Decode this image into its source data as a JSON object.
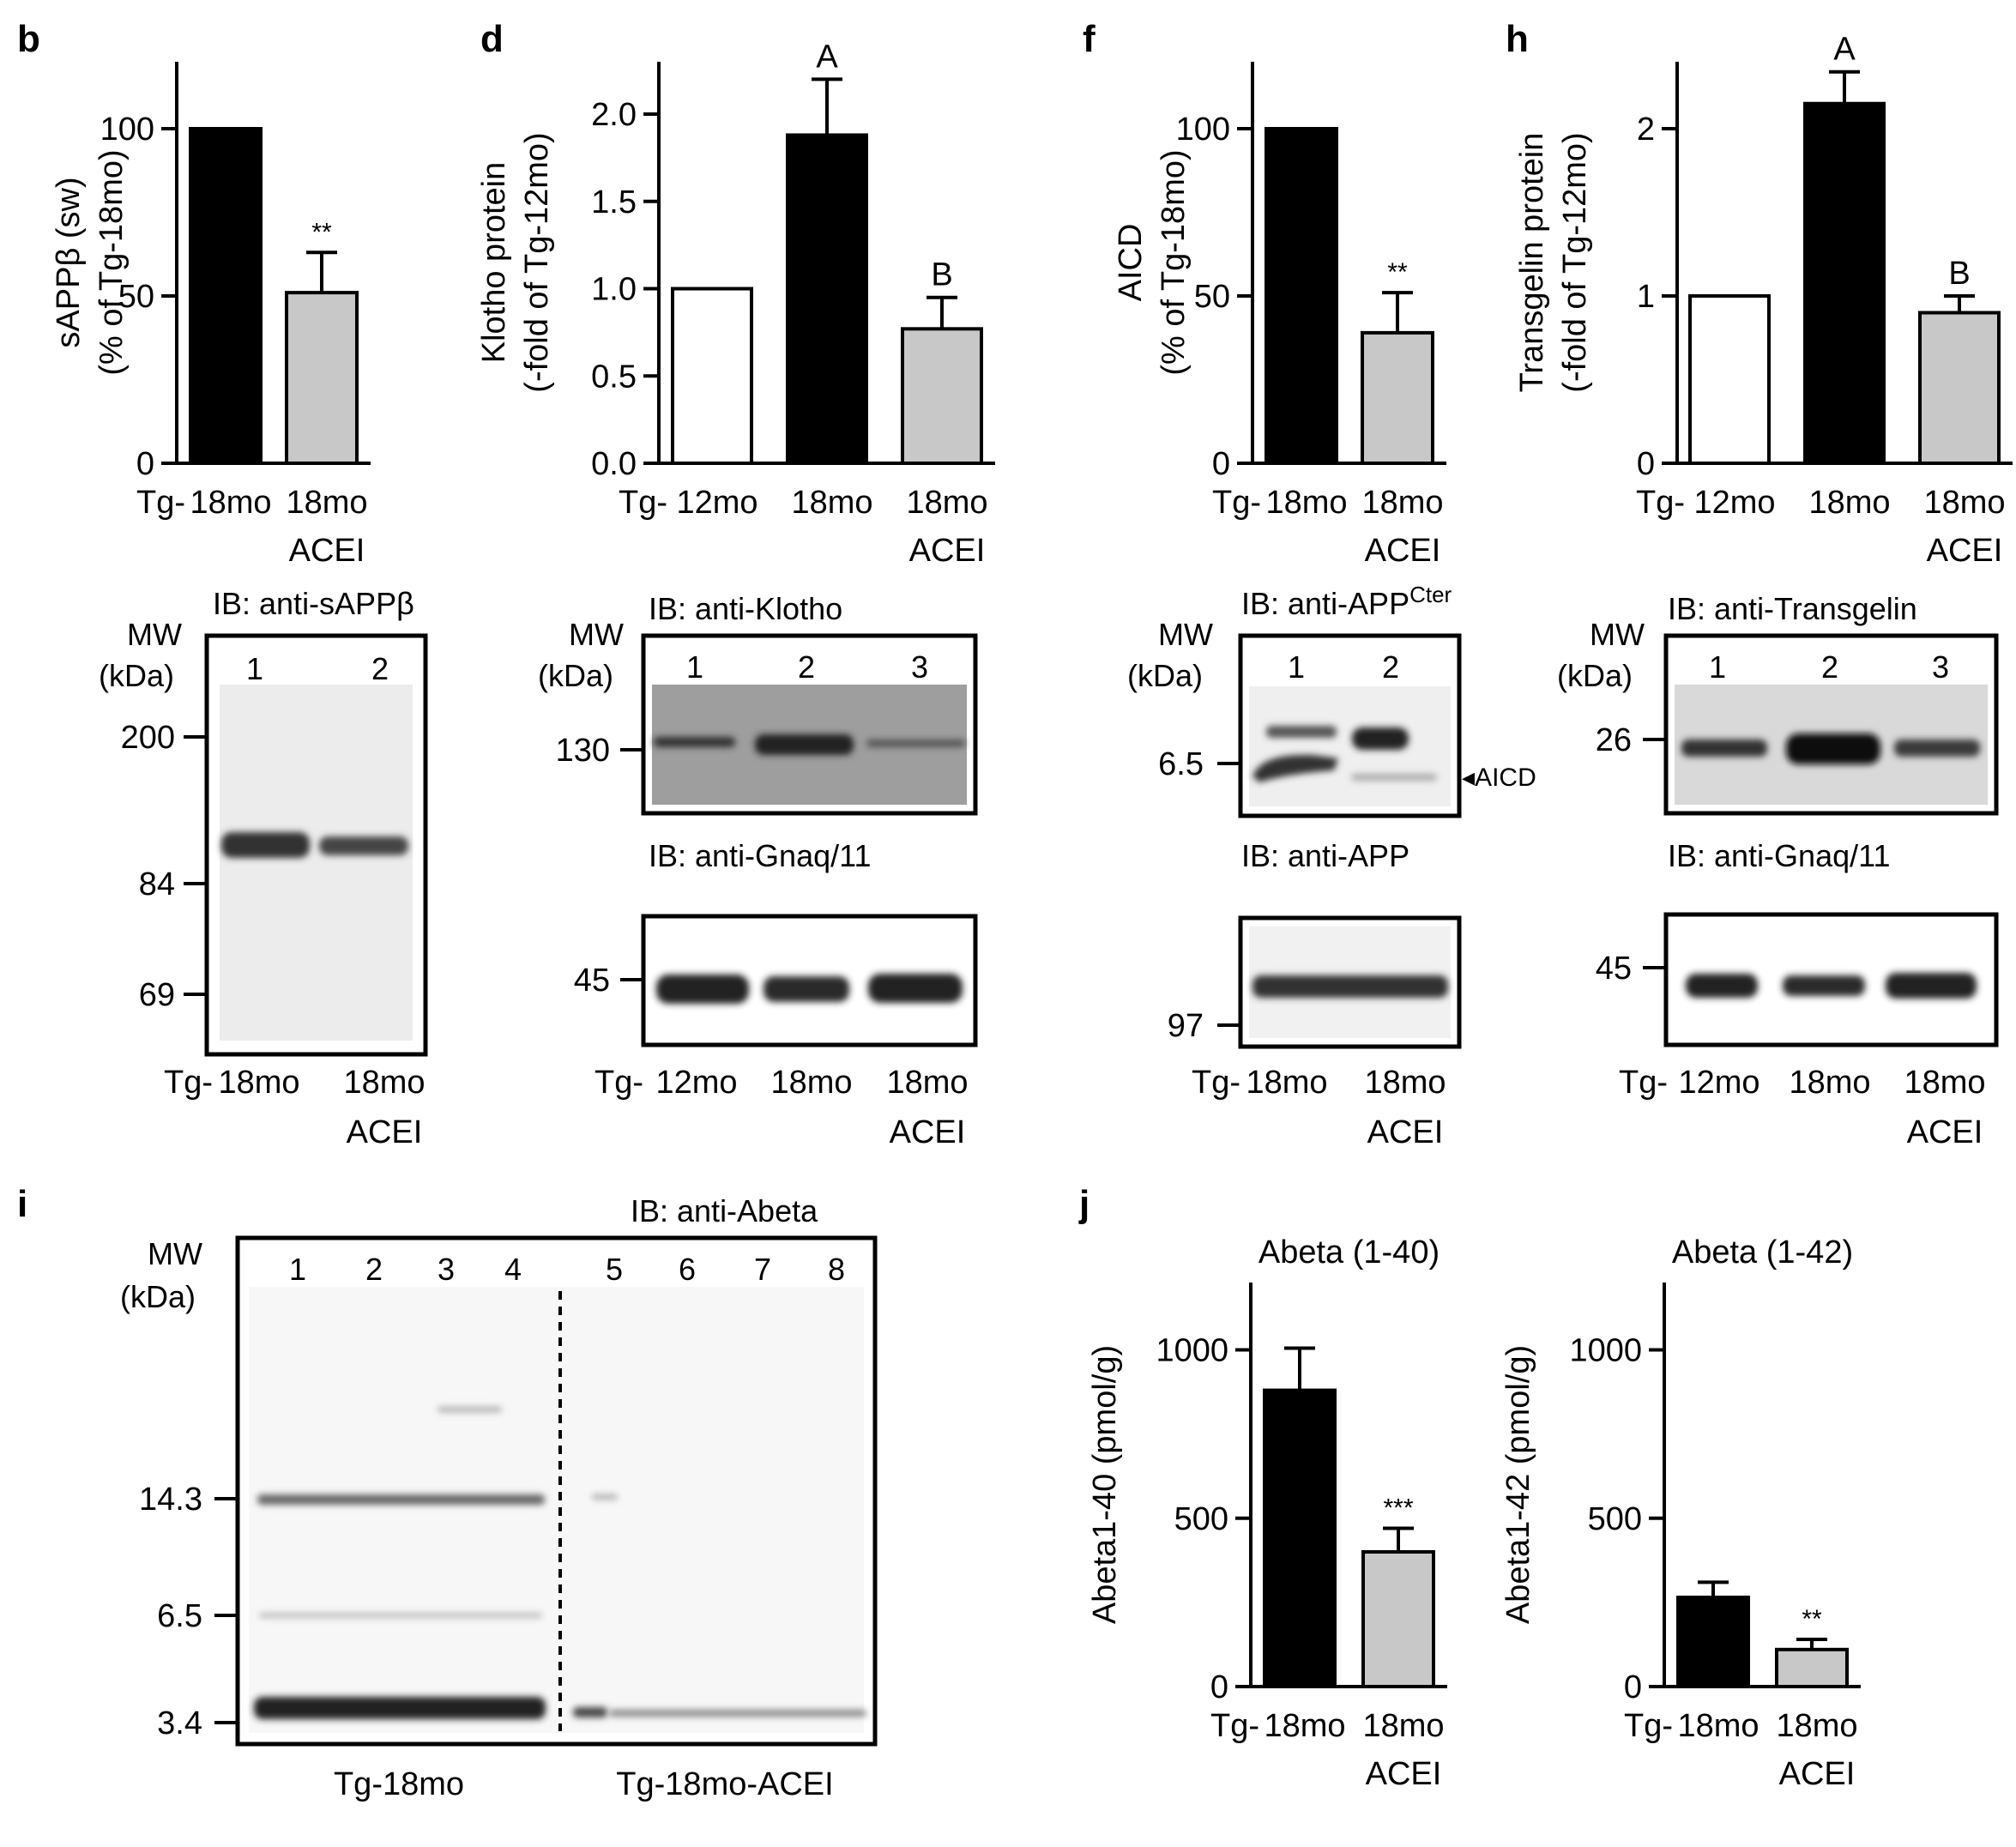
{
  "chart_data": [
    {
      "panel": "b",
      "type": "bar",
      "ylabel": [
        "sAPPβ (sw)",
        "(% of Tg-18mo)"
      ],
      "ylim": [
        0,
        120
      ],
      "yticks": [
        0,
        50,
        100
      ],
      "yticklabels": [
        "0",
        "50",
        "100"
      ],
      "prefix": "Tg-",
      "categories": [
        [
          "18mo"
        ],
        [
          "18mo",
          "ACEI"
        ]
      ],
      "values": [
        100,
        51
      ],
      "errors": [
        0,
        12
      ],
      "fills": [
        "#000000",
        "#c8c8c8"
      ],
      "annotations": [
        "",
        "**"
      ]
    },
    {
      "panel": "d",
      "type": "bar",
      "ylabel": [
        "Klotho protein",
        "(-fold of Tg-12mo)"
      ],
      "ylim": [
        0,
        2.3
      ],
      "yticks": [
        0,
        0.5,
        1,
        1.5,
        2
      ],
      "yticklabels": [
        "0.0",
        "0.5",
        "1.0",
        "1.5",
        "2.0"
      ],
      "prefix": "Tg-",
      "categories": [
        [
          "12mo"
        ],
        [
          "18mo"
        ],
        [
          "18mo",
          "ACEI"
        ]
      ],
      "values": [
        1.0,
        1.88,
        0.77
      ],
      "errors": [
        0,
        0.32,
        0.18
      ],
      "fills": [
        "#ffffff",
        "#000000",
        "#c8c8c8"
      ],
      "annotations": [
        "",
        "A",
        "B"
      ]
    },
    {
      "panel": "f",
      "type": "bar",
      "ylabel": [
        "AICD",
        "(% of Tg-18mo)"
      ],
      "ylim": [
        0,
        120
      ],
      "yticks": [
        0,
        50,
        100
      ],
      "yticklabels": [
        "0",
        "50",
        "100"
      ],
      "prefix": "Tg-",
      "categories": [
        [
          "18mo"
        ],
        [
          "18mo",
          "ACEI"
        ]
      ],
      "values": [
        100,
        39
      ],
      "errors": [
        0,
        12
      ],
      "fills": [
        "#000000",
        "#c8c8c8"
      ],
      "annotations": [
        "",
        "**"
      ]
    },
    {
      "panel": "h",
      "type": "bar",
      "ylabel": [
        "Transgelin protein",
        "(-fold of Tg-12mo)"
      ],
      "ylim": [
        0,
        2.4
      ],
      "yticks": [
        0,
        1,
        2
      ],
      "yticklabels": [
        "0",
        "1",
        "2"
      ],
      "prefix": "Tg-",
      "categories": [
        [
          "12mo"
        ],
        [
          "18mo"
        ],
        [
          "18mo",
          "ACEI"
        ]
      ],
      "values": [
        1.0,
        2.15,
        0.9
      ],
      "errors": [
        0,
        0.19,
        0.1
      ],
      "fills": [
        "#ffffff",
        "#000000",
        "#c8c8c8"
      ],
      "annotations": [
        "",
        "A",
        "B"
      ]
    },
    {
      "panel": "j",
      "type": "bar",
      "title": "Abeta (1-40)",
      "ylabel": [
        "Abeta1-40 (pmol/g)"
      ],
      "ylim": [
        0,
        1200
      ],
      "yticks": [
        0,
        500,
        1000
      ],
      "yticklabels": [
        "0",
        "500",
        "1000"
      ],
      "prefix": "Tg-",
      "categories": [
        [
          "18mo"
        ],
        [
          "18mo",
          "ACEI"
        ]
      ],
      "values": [
        880,
        400
      ],
      "errors": [
        125,
        70
      ],
      "fills": [
        "#000000",
        "#c8c8c8"
      ],
      "annotations": [
        "",
        "***"
      ]
    },
    {
      "panel": "",
      "type": "bar",
      "title": "Abeta (1-42)",
      "ylabel": [
        "Abeta1-42 (pmol/g)"
      ],
      "ylim": [
        0,
        1200
      ],
      "yticks": [
        0,
        500,
        1000
      ],
      "yticklabels": [
        "0",
        "500",
        "1000"
      ],
      "prefix": "Tg-",
      "categories": [
        [
          "18mo"
        ],
        [
          "18mo",
          "ACEI"
        ]
      ],
      "values": [
        265,
        110
      ],
      "errors": [
        45,
        30
      ],
      "fills": [
        "#000000",
        "#c8c8c8"
      ],
      "annotations": [
        "",
        "**"
      ]
    }
  ],
  "blots": [
    {
      "panel": "b",
      "title": "IB: anti-sAPPβ",
      "mw": [
        "MW",
        "(kDa)"
      ],
      "lanes": [
        "1",
        "2"
      ],
      "markers": [
        "200",
        "84",
        "69"
      ],
      "prefix": "Tg-",
      "groups": [
        [
          "18mo"
        ],
        [
          "18mo",
          "ACEI"
        ]
      ]
    },
    {
      "panel": "d",
      "title": "IB: anti-Klotho",
      "mw": [
        "MW",
        "(kDa)"
      ],
      "lanes": [
        "1",
        "2",
        "3"
      ],
      "markers": [
        "130"
      ],
      "lower_title": "IB: anti-Gnaq/11",
      "lower_markers": [
        "45"
      ],
      "prefix": "Tg-",
      "groups": [
        [
          "12mo"
        ],
        [
          "18mo"
        ],
        [
          "18mo",
          "ACEI"
        ]
      ]
    },
    {
      "panel": "f",
      "title": "IB: anti-APP",
      "title_sup": "Cter",
      "mw": [
        "MW",
        "(kDa)"
      ],
      "lanes": [
        "1",
        "2"
      ],
      "markers": [
        "6.5"
      ],
      "band_label": "◂AICD",
      "lower_title": "IB: anti-APP",
      "lower_markers": [
        "97"
      ],
      "prefix": "Tg-",
      "groups": [
        [
          "18mo"
        ],
        [
          "18mo",
          "ACEI"
        ]
      ]
    },
    {
      "panel": "h",
      "title": "IB: anti-Transgelin",
      "mw": [
        "MW",
        "(kDa)"
      ],
      "lanes": [
        "1",
        "2",
        "3"
      ],
      "markers": [
        "26"
      ],
      "lower_title": "IB: anti-Gnaq/11",
      "lower_markers": [
        "45"
      ],
      "prefix": "Tg-",
      "groups": [
        [
          "12mo"
        ],
        [
          "18mo"
        ],
        [
          "18mo",
          "ACEI"
        ]
      ]
    },
    {
      "panel": "i",
      "title": "IB: anti-Abeta",
      "mw": [
        "MW",
        "(kDa)"
      ],
      "lanes": [
        "1",
        "2",
        "3",
        "4",
        "5",
        "6",
        "7",
        "8"
      ],
      "markers": [
        "14.3",
        "6.5",
        "3.4"
      ],
      "groups": [
        "Tg-18mo",
        "Tg-18mo-ACEI"
      ]
    }
  ]
}
